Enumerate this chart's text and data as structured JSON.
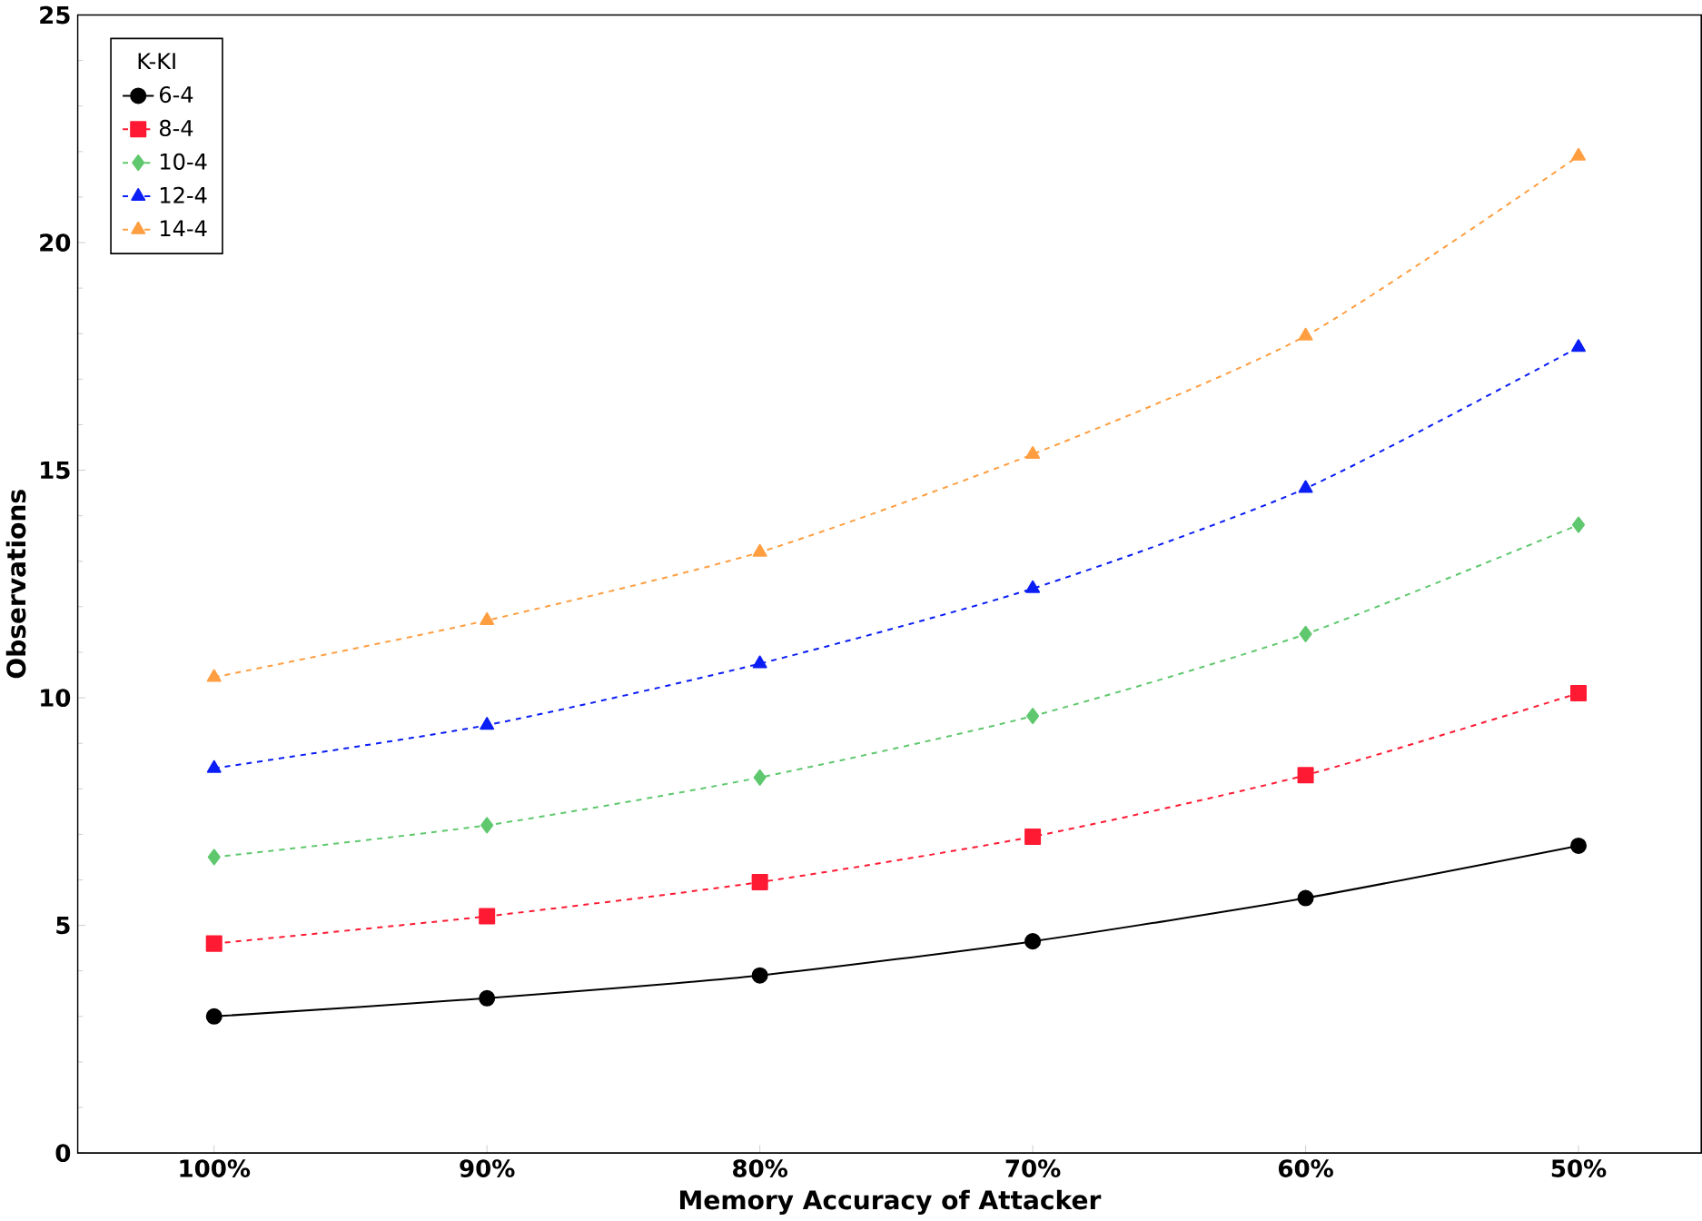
{
  "chart_data": {
    "type": "line",
    "xlabel": "Memory Accuracy of Attacker",
    "ylabel": "Observations",
    "legend_title": "K-KI",
    "legend": "top left",
    "grid": false,
    "categories": [
      "100%",
      "90%",
      "80%",
      "70%",
      "60%",
      "50%"
    ],
    "ylim": [
      0,
      25
    ],
    "yticks": [
      0,
      5,
      10,
      15,
      20,
      25
    ],
    "series": [
      {
        "name": "6-4",
        "color": "#000000",
        "marker": "circle",
        "line_style": "solid",
        "values": [
          3.0,
          3.4,
          3.9,
          4.65,
          5.6,
          6.75
        ]
      },
      {
        "name": "8-4",
        "color": "#ff1a33",
        "marker": "square",
        "line_style": "dashed",
        "values": [
          4.6,
          5.2,
          5.95,
          6.95,
          8.3,
          10.1
        ]
      },
      {
        "name": "10-4",
        "color": "#5fc86e",
        "marker": "diamond",
        "line_style": "dashed",
        "values": [
          6.5,
          7.2,
          8.25,
          9.6,
          11.4,
          13.8
        ]
      },
      {
        "name": "12-4",
        "color": "#0a1ef5",
        "marker": "triangle",
        "line_style": "dashed",
        "values": [
          8.45,
          9.4,
          10.75,
          12.4,
          14.6,
          17.7
        ]
      },
      {
        "name": "14-4",
        "color": "#ff9e40",
        "marker": "triangle",
        "line_style": "dashed",
        "values": [
          10.45,
          11.7,
          13.2,
          15.35,
          17.95,
          21.9
        ]
      }
    ]
  }
}
